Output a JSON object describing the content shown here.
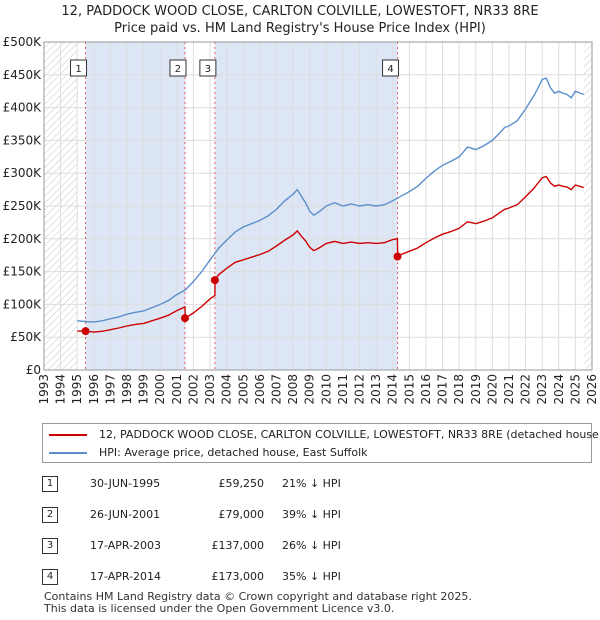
{
  "title_line1": "12, PADDOCK WOOD CLOSE, CARLTON COLVILLE, LOWESTOFT, NR33 8RE",
  "title_line2": "Price paid vs. HM Land Registry's House Price Index (HPI)",
  "colors": {
    "property": "#cc0000",
    "hpi": "#5b8fcc",
    "shade": "#dde6f5",
    "grid": "#dddddd"
  },
  "chart_data": {
    "type": "line",
    "xlim": [
      1993,
      2026
    ],
    "ylim": [
      0,
      500000
    ],
    "x_ticks": [
      1993,
      1994,
      1995,
      1996,
      1997,
      1998,
      1999,
      2000,
      2001,
      2002,
      2003,
      2004,
      2005,
      2006,
      2007,
      2008,
      2009,
      2010,
      2011,
      2012,
      2013,
      2014,
      2015,
      2016,
      2017,
      2018,
      2019,
      2020,
      2021,
      2022,
      2023,
      2024,
      2025,
      2026
    ],
    "y_ticks": [
      {
        "value": 0,
        "label": "£0"
      },
      {
        "value": 50000,
        "label": "£50K"
      },
      {
        "value": 100000,
        "label": "£100K"
      },
      {
        "value": 150000,
        "label": "£150K"
      },
      {
        "value": 200000,
        "label": "£200K"
      },
      {
        "value": 250000,
        "label": "£250K"
      },
      {
        "value": 300000,
        "label": "£300K"
      },
      {
        "value": 350000,
        "label": "£350K"
      },
      {
        "value": 400000,
        "label": "£400K"
      },
      {
        "value": 450000,
        "label": "£450K"
      },
      {
        "value": 500000,
        "label": "£500K"
      }
    ],
    "data_span": [
      1995.0,
      2025.5
    ],
    "series": [
      {
        "name": "HPI: Average price, detached house, East Suffolk",
        "points": [
          [
            1995.0,
            75000
          ],
          [
            1995.5,
            74000
          ],
          [
            1996.0,
            73000
          ],
          [
            1996.5,
            75000
          ],
          [
            1997.0,
            78000
          ],
          [
            1997.5,
            81000
          ],
          [
            1998.0,
            85000
          ],
          [
            1998.5,
            88000
          ],
          [
            1999.0,
            90000
          ],
          [
            1999.5,
            95000
          ],
          [
            2000.0,
            100000
          ],
          [
            2000.5,
            106000
          ],
          [
            2001.0,
            115000
          ],
          [
            2001.5,
            122000
          ],
          [
            2002.0,
            135000
          ],
          [
            2002.5,
            150000
          ],
          [
            2003.0,
            168000
          ],
          [
            2003.5,
            185000
          ],
          [
            2004.0,
            198000
          ],
          [
            2004.5,
            210000
          ],
          [
            2005.0,
            218000
          ],
          [
            2005.5,
            223000
          ],
          [
            2006.0,
            228000
          ],
          [
            2006.5,
            235000
          ],
          [
            2007.0,
            245000
          ],
          [
            2007.5,
            258000
          ],
          [
            2008.0,
            268000
          ],
          [
            2008.25,
            275000
          ],
          [
            2008.5,
            265000
          ],
          [
            2008.75,
            255000
          ],
          [
            2009.0,
            242000
          ],
          [
            2009.25,
            236000
          ],
          [
            2009.5,
            240000
          ],
          [
            2009.75,
            245000
          ],
          [
            2010.0,
            250000
          ],
          [
            2010.5,
            255000
          ],
          [
            2011.0,
            250000
          ],
          [
            2011.5,
            253000
          ],
          [
            2012.0,
            250000
          ],
          [
            2012.5,
            252000
          ],
          [
            2013.0,
            250000
          ],
          [
            2013.5,
            252000
          ],
          [
            2014.0,
            258000
          ],
          [
            2014.5,
            265000
          ],
          [
            2015.0,
            272000
          ],
          [
            2015.5,
            280000
          ],
          [
            2016.0,
            292000
          ],
          [
            2016.5,
            303000
          ],
          [
            2017.0,
            312000
          ],
          [
            2017.5,
            318000
          ],
          [
            2018.0,
            325000
          ],
          [
            2018.5,
            340000
          ],
          [
            2019.0,
            336000
          ],
          [
            2019.5,
            342000
          ],
          [
            2020.0,
            350000
          ],
          [
            2020.5,
            363000
          ],
          [
            2020.75,
            370000
          ],
          [
            2021.0,
            372000
          ],
          [
            2021.5,
            380000
          ],
          [
            2022.0,
            398000
          ],
          [
            2022.5,
            418000
          ],
          [
            2022.75,
            430000
          ],
          [
            2023.0,
            443000
          ],
          [
            2023.25,
            445000
          ],
          [
            2023.5,
            430000
          ],
          [
            2023.75,
            422000
          ],
          [
            2024.0,
            425000
          ],
          [
            2024.25,
            422000
          ],
          [
            2024.5,
            420000
          ],
          [
            2024.75,
            415000
          ],
          [
            2025.0,
            425000
          ],
          [
            2025.5,
            420000
          ]
        ]
      },
      {
        "name": "12, PADDOCK WOOD CLOSE, CARLTON COLVILLE, LOWESTOFT, NR33 8RE (detached house)",
        "points": [
          [
            1995.0,
            59250
          ],
          [
            1995.5,
            59250
          ],
          [
            1996.0,
            57800
          ],
          [
            1996.5,
            59000
          ],
          [
            1997.0,
            61500
          ],
          [
            1997.5,
            64000
          ],
          [
            1998.0,
            67000
          ],
          [
            1998.5,
            69500
          ],
          [
            1999.0,
            71000
          ],
          [
            1999.5,
            75000
          ],
          [
            2000.0,
            79000
          ],
          [
            2000.5,
            83500
          ],
          [
            2001.0,
            90500
          ],
          [
            2001.49,
            96000
          ],
          [
            2001.5,
            79000
          ],
          [
            2002.0,
            87000
          ],
          [
            2002.5,
            97000
          ],
          [
            2003.0,
            108500
          ],
          [
            2003.29,
            113500
          ],
          [
            2003.3,
            137000
          ],
          [
            2003.5,
            145000
          ],
          [
            2004.0,
            155000
          ],
          [
            2004.5,
            164000
          ],
          [
            2005.0,
            168000
          ],
          [
            2005.5,
            172000
          ],
          [
            2006.0,
            176000
          ],
          [
            2006.5,
            181000
          ],
          [
            2007.0,
            189000
          ],
          [
            2007.5,
            198000
          ],
          [
            2008.0,
            206000
          ],
          [
            2008.25,
            212000
          ],
          [
            2008.5,
            204000
          ],
          [
            2008.75,
            197000
          ],
          [
            2009.0,
            187000
          ],
          [
            2009.25,
            182000
          ],
          [
            2009.5,
            185000
          ],
          [
            2009.75,
            189000
          ],
          [
            2010.0,
            193000
          ],
          [
            2010.5,
            196000
          ],
          [
            2011.0,
            193000
          ],
          [
            2011.5,
            195000
          ],
          [
            2012.0,
            193000
          ],
          [
            2012.5,
            194000
          ],
          [
            2013.0,
            193000
          ],
          [
            2013.5,
            194000
          ],
          [
            2014.0,
            199000
          ],
          [
            2014.28,
            200000
          ],
          [
            2014.3,
            173000
          ],
          [
            2014.5,
            176000
          ],
          [
            2015.0,
            181000
          ],
          [
            2015.5,
            186000
          ],
          [
            2016.0,
            194000
          ],
          [
            2016.5,
            201000
          ],
          [
            2017.0,
            207000
          ],
          [
            2017.5,
            211000
          ],
          [
            2018.0,
            216000
          ],
          [
            2018.5,
            226000
          ],
          [
            2019.0,
            223000
          ],
          [
            2019.5,
            227000
          ],
          [
            2020.0,
            232000
          ],
          [
            2020.5,
            241000
          ],
          [
            2020.75,
            245000
          ],
          [
            2021.0,
            247000
          ],
          [
            2021.5,
            252000
          ],
          [
            2022.0,
            264000
          ],
          [
            2022.5,
            277000
          ],
          [
            2022.75,
            285000
          ],
          [
            2023.0,
            293000
          ],
          [
            2023.25,
            295000
          ],
          [
            2023.5,
            285000
          ],
          [
            2023.75,
            280000
          ],
          [
            2024.0,
            282000
          ],
          [
            2024.25,
            280000
          ],
          [
            2024.5,
            279000
          ],
          [
            2024.75,
            275000
          ],
          [
            2025.0,
            282000
          ],
          [
            2025.5,
            278000
          ]
        ]
      }
    ],
    "shaded_regions": [
      [
        1995.5,
        2001.5
      ],
      [
        2003.3,
        2014.3
      ]
    ],
    "markers": [
      {
        "label": "1",
        "x": 1995.5,
        "y": 59250
      },
      {
        "label": "2",
        "x": 2001.49,
        "y": 79000
      },
      {
        "label": "3",
        "x": 2003.29,
        "y": 137000
      },
      {
        "label": "4",
        "x": 2014.29,
        "y": 173000
      }
    ]
  },
  "legend": {
    "property": "12, PADDOCK WOOD CLOSE, CARLTON COLVILLE, LOWESTOFT, NR33 8RE (detached house)",
    "hpi": "HPI: Average price, detached house, East Suffolk"
  },
  "transactions": [
    {
      "num": "1",
      "date": "30-JUN-1995",
      "price": "£59,250",
      "hpi": "21% ↓ HPI"
    },
    {
      "num": "2",
      "date": "26-JUN-2001",
      "price": "£79,000",
      "hpi": "39% ↓ HPI"
    },
    {
      "num": "3",
      "date": "17-APR-2003",
      "price": "£137,000",
      "hpi": "26% ↓ HPI"
    },
    {
      "num": "4",
      "date": "17-APR-2014",
      "price": "£173,000",
      "hpi": "35% ↓ HPI"
    }
  ],
  "footer": {
    "line1": "Contains HM Land Registry data © Crown copyright and database right 2025.",
    "line2": "This data is licensed under the Open Government Licence v3.0."
  }
}
